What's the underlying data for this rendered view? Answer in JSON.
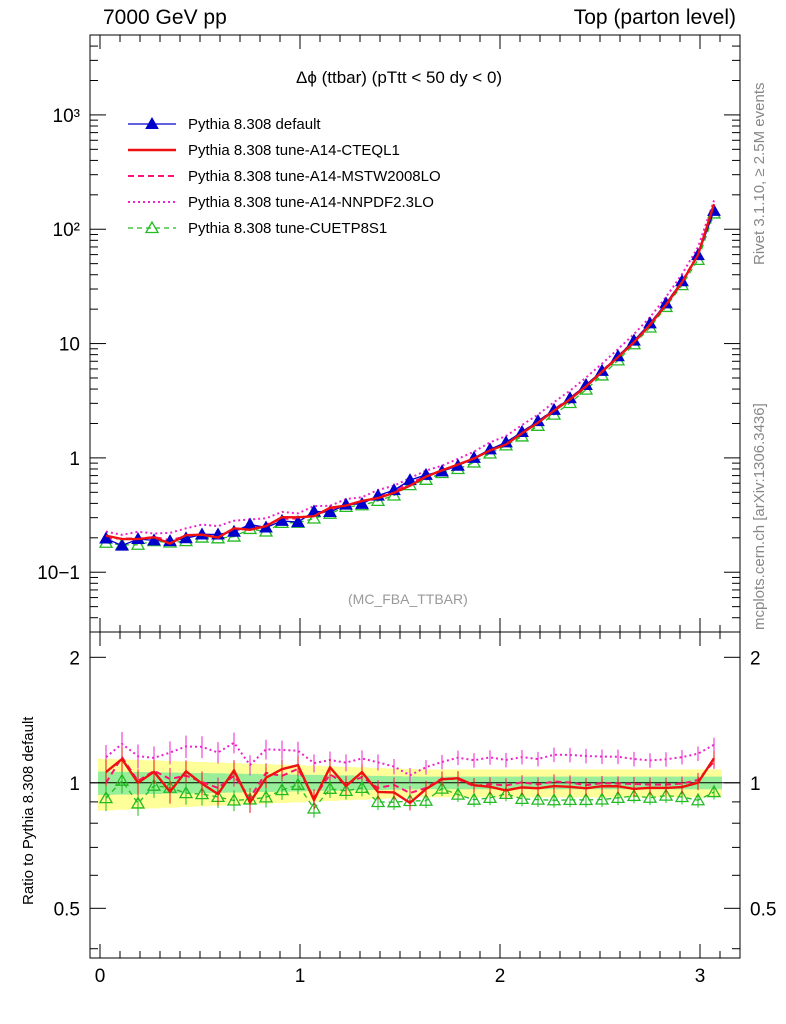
{
  "header": {
    "left": "7000 GeV pp",
    "right": "Top (parton level)"
  },
  "side_labels": {
    "rivet": "Rivet 3.1.10, ≥ 2.5M events",
    "mcplots": "mcplots.cern.ch [arXiv:1306.3436]"
  },
  "ratio_ylabel": "Ratio to Pythia 8.308 default",
  "analysis": "(MC_FBA_TTBAR)",
  "colors": {
    "default": "#0000cc",
    "cteql1": "#ee1111",
    "mstw": "#ff1177",
    "nnpdf": "#ee22cc",
    "cuetp8s1": "#22bb22"
  },
  "chart_data": {
    "type": "line",
    "title": "Δϕ (ttbar) (pTtt < 50 dy < 0)",
    "xlabel": "",
    "ylabel": "",
    "main_scale": "log",
    "xlim": [
      -0.05,
      3.2
    ],
    "ylim": [
      0.03,
      5000
    ],
    "ratio_ylim": [
      0.38,
      2.3
    ],
    "legend_position": "top-left",
    "x_ticks": [
      "0",
      "1",
      "2",
      "3"
    ],
    "y_ticks": [
      "10−1",
      "1",
      "10",
      "10²",
      "10³"
    ],
    "ratio_ticks": [
      "0.5",
      "1",
      "2"
    ],
    "x": [
      0.03,
      0.11,
      0.19,
      0.27,
      0.35,
      0.43,
      0.51,
      0.59,
      0.67,
      0.75,
      0.83,
      0.91,
      0.99,
      1.07,
      1.15,
      1.23,
      1.31,
      1.39,
      1.47,
      1.55,
      1.63,
      1.71,
      1.79,
      1.87,
      1.95,
      2.03,
      2.11,
      2.19,
      2.27,
      2.35,
      2.43,
      2.51,
      2.59,
      2.67,
      2.75,
      2.83,
      2.91,
      2.99,
      3.07
    ],
    "series": [
      {
        "name": "Pythia 8.308 default",
        "key": "default",
        "values": [
          0.197,
          0.171,
          0.195,
          0.19,
          0.187,
          0.198,
          0.214,
          0.214,
          0.226,
          0.262,
          0.246,
          0.281,
          0.274,
          0.34,
          0.336,
          0.39,
          0.396,
          0.468,
          0.522,
          0.639,
          0.71,
          0.762,
          0.854,
          1.0,
          1.188,
          1.367,
          1.684,
          2.095,
          2.631,
          3.322,
          4.345,
          5.771,
          7.75,
          10.61,
          15.02,
          22.44,
          35.12,
          59.42,
          144.7
        ]
      },
      {
        "name": "Pythia 8.308 tune-A14-CTEQL1",
        "key": "cteql1",
        "values": [
          0.209,
          0.195,
          0.195,
          0.202,
          0.178,
          0.211,
          0.213,
          0.201,
          0.242,
          0.235,
          0.253,
          0.303,
          0.302,
          0.309,
          0.366,
          0.383,
          0.42,
          0.445,
          0.495,
          0.572,
          0.686,
          0.777,
          0.876,
          0.987,
          1.162,
          1.311,
          1.642,
          2.032,
          2.584,
          3.25,
          4.215,
          5.664,
          7.604,
          10.26,
          14.61,
          21.81,
          34.3,
          59.45,
          165.7
        ]
      },
      {
        "name": "Pythia 8.308 tune-A14-MSTW2008LO",
        "key": "mstw",
        "values": [
          0.197,
          0.197,
          0.197,
          0.203,
          0.191,
          0.206,
          0.215,
          0.208,
          0.235,
          0.241,
          0.26,
          0.292,
          0.296,
          0.313,
          0.352,
          0.387,
          0.409,
          0.455,
          0.516,
          0.604,
          0.69,
          0.781,
          0.871,
          0.982,
          1.179,
          1.347,
          1.688,
          2.076,
          2.65,
          3.328,
          4.29,
          5.761,
          7.721,
          10.54,
          14.87,
          22.21,
          34.97,
          60.35,
          162.8
        ]
      },
      {
        "name": "Pythia 8.308 tune-A14-NNPDF2.3LO",
        "key": "nnpdf",
        "values": [
          0.227,
          0.212,
          0.226,
          0.218,
          0.221,
          0.242,
          0.261,
          0.253,
          0.282,
          0.289,
          0.296,
          0.337,
          0.327,
          0.379,
          0.381,
          0.436,
          0.453,
          0.524,
          0.571,
          0.666,
          0.774,
          0.855,
          0.981,
          1.133,
          1.367,
          1.551,
          1.941,
          2.389,
          3.073,
          3.874,
          5.04,
          6.668,
          8.951,
          12.1,
          17.0,
          25.55,
          40.47,
          69.8,
          178.5
        ]
      },
      {
        "name": "Pythia 8.308 tune-CUETP8S1",
        "key": "cuetp8s1",
        "values": [
          0.181,
          0.173,
          0.174,
          0.187,
          0.182,
          0.187,
          0.201,
          0.198,
          0.205,
          0.239,
          0.227,
          0.27,
          0.271,
          0.295,
          0.325,
          0.373,
          0.385,
          0.421,
          0.469,
          0.578,
          0.643,
          0.738,
          0.8,
          0.911,
          1.093,
          1.286,
          1.541,
          1.909,
          2.389,
          3.023,
          3.953,
          5.263,
          7.131,
          9.868,
          13.83,
          20.91,
          32.47,
          53.97,
          137.5
        ]
      }
    ]
  }
}
